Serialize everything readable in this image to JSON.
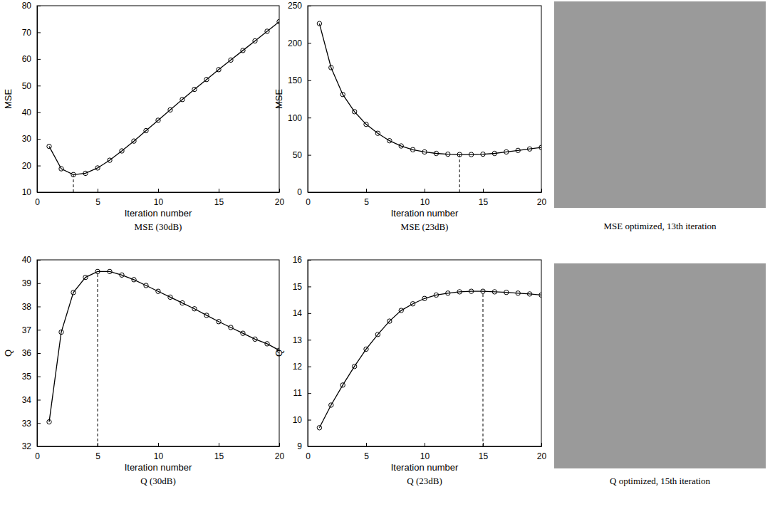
{
  "chart_data": [
    {
      "type": "line",
      "title": "MSE (30dB)",
      "x_label": "Iteration number",
      "y_label": "MSE",
      "x": [
        1,
        2,
        3,
        4,
        5,
        6,
        7,
        8,
        9,
        10,
        11,
        12,
        13,
        14,
        15,
        16,
        17,
        18,
        19,
        20
      ],
      "series": [
        {
          "values": [
            27.2,
            18.8,
            16.6,
            17.1,
            19.1,
            22.0,
            25.5,
            29.2,
            33.1,
            37.0,
            40.9,
            44.8,
            48.6,
            52.3,
            56.0,
            59.6,
            63.2,
            66.8,
            70.4,
            74.0
          ],
          "color": "#000000",
          "marker": "circle",
          "line_style": "solid"
        }
      ],
      "xlim": [
        0,
        20
      ],
      "xticks": [
        0,
        5,
        10,
        15,
        20
      ],
      "ylim": [
        10,
        80
      ],
      "yticks": [
        10,
        20,
        30,
        40,
        50,
        60,
        70,
        80
      ],
      "optimum": 3
    },
    {
      "type": "line",
      "title": "MSE (23dB)",
      "x_label": "Iteration number",
      "y_label": "MSE",
      "x": [
        1,
        2,
        3,
        4,
        5,
        6,
        7,
        8,
        9,
        10,
        11,
        12,
        13,
        14,
        15,
        16,
        17,
        18,
        19,
        20
      ],
      "series": [
        {
          "values": [
            226,
            167,
            131,
            108,
            91,
            79,
            69,
            62,
            57,
            54,
            52,
            51,
            50.5,
            50.5,
            51,
            52,
            54,
            56,
            58,
            60
          ],
          "color": "#000000",
          "marker": "circle",
          "line_style": "solid"
        }
      ],
      "xlim": [
        0,
        20
      ],
      "xticks": [
        0,
        5,
        10,
        15,
        20
      ],
      "ylim": [
        0,
        250
      ],
      "yticks": [
        0,
        50,
        100,
        150,
        200,
        250
      ],
      "optimum": 13
    },
    {
      "type": "line",
      "title": "Q (30dB)",
      "x_label": "Iteration number",
      "y_label": "Q",
      "x": [
        1,
        2,
        3,
        4,
        5,
        6,
        7,
        8,
        9,
        10,
        11,
        12,
        13,
        14,
        15,
        16,
        17,
        18,
        19,
        20
      ],
      "series": [
        {
          "values": [
            33.05,
            36.9,
            38.6,
            39.25,
            39.5,
            39.5,
            39.35,
            39.15,
            38.9,
            38.65,
            38.4,
            38.15,
            37.9,
            37.62,
            37.35,
            37.1,
            36.85,
            36.6,
            36.4,
            36.12
          ],
          "color": "#000000",
          "marker": "circle",
          "line_style": "solid"
        }
      ],
      "xlim": [
        0,
        20
      ],
      "xticks": [
        0,
        5,
        10,
        15,
        20
      ],
      "ylim": [
        32,
        40
      ],
      "yticks": [
        32,
        33,
        34,
        35,
        36,
        37,
        38,
        39,
        40
      ],
      "optimum": 5
    },
    {
      "type": "line",
      "title": "Q (23dB)",
      "x_label": "Iteration number",
      "y_label": "Q",
      "x": [
        1,
        2,
        3,
        4,
        5,
        6,
        7,
        8,
        9,
        10,
        11,
        12,
        13,
        14,
        15,
        16,
        17,
        18,
        19,
        20
      ],
      "series": [
        {
          "values": [
            9.7,
            10.55,
            11.3,
            12.0,
            12.65,
            13.2,
            13.7,
            14.1,
            14.35,
            14.55,
            14.68,
            14.75,
            14.8,
            14.82,
            14.82,
            14.8,
            14.78,
            14.75,
            14.72,
            14.68
          ],
          "color": "#000000",
          "marker": "circle",
          "line_style": "solid"
        }
      ],
      "xlim": [
        0,
        20
      ],
      "xticks": [
        0,
        5,
        10,
        15,
        20
      ],
      "ylim": [
        9,
        16
      ],
      "yticks": [
        9,
        10,
        11,
        12,
        13,
        14,
        15,
        16
      ],
      "optimum": 15
    }
  ],
  "images": [
    {
      "caption": "MSE optimized, 13th iteration"
    },
    {
      "caption": "Q optimized, 15th iteration"
    }
  ]
}
